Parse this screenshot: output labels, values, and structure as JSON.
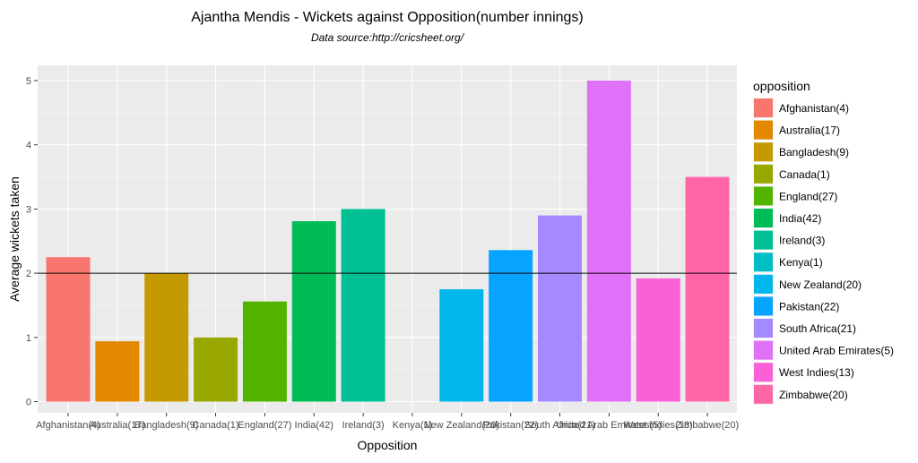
{
  "chart_data": {
    "type": "bar",
    "title": "Ajantha Mendis - Wickets against Opposition(number innings)",
    "subtitle": "Data source:http://cricsheet.org/",
    "xlabel": "Opposition",
    "ylabel": "Average wickets taken",
    "ylim": [
      0,
      5.25
    ],
    "yticks": [
      0,
      1,
      2,
      3,
      4,
      5
    ],
    "reference_line": 2,
    "categories": [
      "Afghanistan(4)",
      "Australia(17)",
      "Bangladesh(9)",
      "Canada(1)",
      "England(27)",
      "India(42)",
      "Ireland(3)",
      "Kenya(1)",
      "New Zealand(20)",
      "Pakistan(22)",
      "South Africa(21)",
      "United Arab Emirates(5)",
      "West Indies(13)",
      "Zimbabwe(20)"
    ],
    "values": [
      2.25,
      0.94,
      2.0,
      1.0,
      1.56,
      2.81,
      3.0,
      0.0,
      1.75,
      2.36,
      2.9,
      5.0,
      1.92,
      3.5
    ],
    "colors": [
      "#F8766D",
      "#E38900",
      "#C49A00",
      "#99A800",
      "#53B400",
      "#00BC56",
      "#00C094",
      "#00BFC4",
      "#00B6EB",
      "#06A4FF",
      "#A58AFF",
      "#DF70F8",
      "#FB61D7",
      "#FF66A8"
    ],
    "legend": {
      "title": "opposition",
      "position": "right"
    }
  }
}
